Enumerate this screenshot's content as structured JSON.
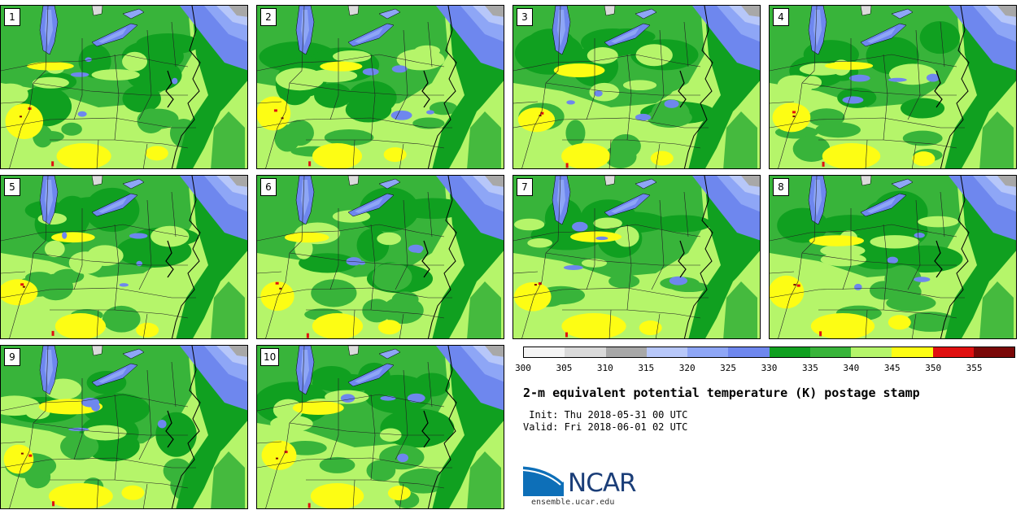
{
  "panels": [
    {
      "label": "1"
    },
    {
      "label": "2"
    },
    {
      "label": "3"
    },
    {
      "label": "4"
    },
    {
      "label": "5"
    },
    {
      "label": "6"
    },
    {
      "label": "7"
    },
    {
      "label": "8"
    },
    {
      "label": "9"
    },
    {
      "label": "10"
    }
  ],
  "colorbar": {
    "colors": [
      "#f4f4f4",
      "#dadada",
      "#a8a8a8",
      "#b7c7f9",
      "#8ea6f6",
      "#6e87ee",
      "#10a020",
      "#38b43a",
      "#b5f56a",
      "#fdfd14",
      "#e01010",
      "#7a0808"
    ],
    "ticks": [
      "300",
      "305",
      "310",
      "315",
      "320",
      "325",
      "330",
      "335",
      "340",
      "345",
      "350",
      "355"
    ]
  },
  "title": "2-m equivalent potential temperature (K) postage stamp",
  "init": " Init: Thu 2018-05-31 00 UTC",
  "valid": "Valid: Fri 2018-06-01 02 UTC",
  "logo": {
    "text": "NCAR",
    "website": "ensemble.ucar.edu"
  }
}
